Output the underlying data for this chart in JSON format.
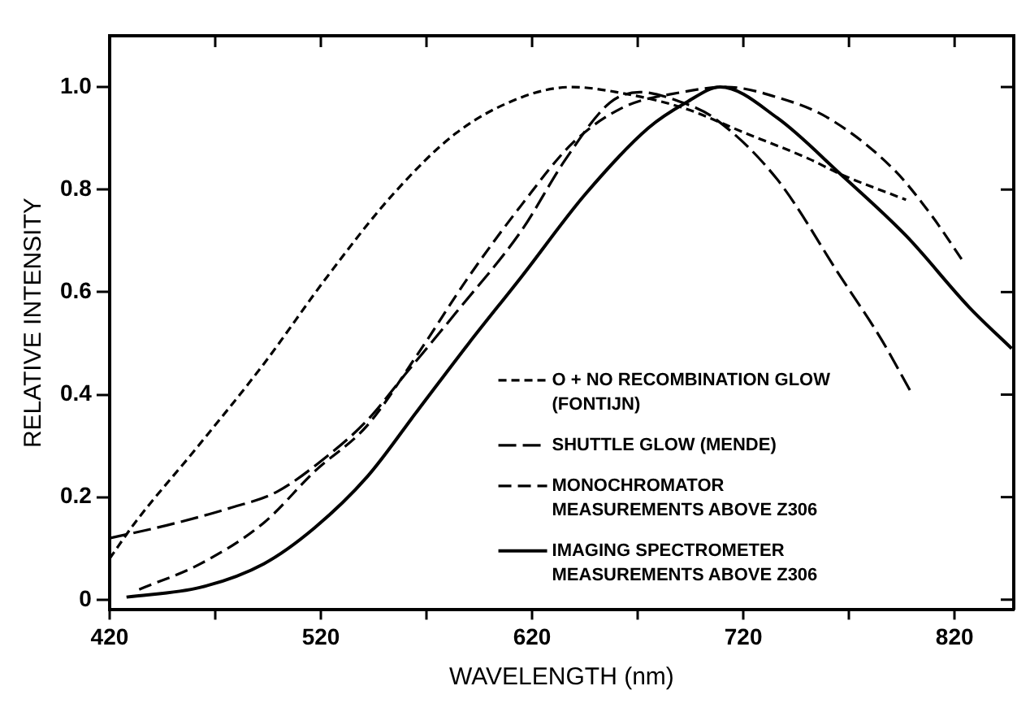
{
  "chart_data": {
    "type": "line",
    "xlabel": "WAVELENGTH (nm)",
    "ylabel": "RELATIVE INTENSITY",
    "xlim": [
      420,
      848
    ],
    "ylim": [
      -0.02,
      1.1
    ],
    "xticks": [
      420,
      {
        "value": 470,
        "label": null
      },
      520,
      {
        "value": 570,
        "label": null
      },
      620,
      {
        "value": 670,
        "label": null
      },
      720,
      {
        "value": 770,
        "label": null
      },
      820
    ],
    "yticks": [
      0,
      0.2,
      0.4,
      0.6,
      0.8,
      {
        "value": 1,
        "label": "1.0"
      }
    ],
    "grid": false,
    "legend": "right",
    "marker": "none",
    "series": [
      {
        "name": "O + NO RECOMBINATION GLOW (FONTIJN)",
        "color": "#000000",
        "line_style": "dashed",
        "x": [
          420,
          432,
          462,
          493,
          523,
          554,
          584,
          615,
          639,
          660,
          691,
          721,
          751,
          766,
          797
        ],
        "values": [
          0.08,
          0.15,
          0.3,
          0.46,
          0.63,
          0.79,
          0.91,
          0.98,
          1.0,
          0.99,
          0.96,
          0.91,
          0.86,
          0.83,
          0.78
        ]
      },
      {
        "name": "SHUTTLE GLOW (MENDE)",
        "color": "#000000",
        "line_style": "dashed",
        "x": [
          420,
          447,
          478,
          499,
          523,
          542,
          560,
          584,
          615,
          636,
          657,
          671,
          691,
          706,
          736,
          766,
          785,
          800
        ],
        "values": [
          0.12,
          0.145,
          0.18,
          0.21,
          0.28,
          0.35,
          0.44,
          0.56,
          0.72,
          0.86,
          0.97,
          0.99,
          0.97,
          0.94,
          0.82,
          0.63,
          0.51,
          0.4
        ]
      },
      {
        "name": "MONOCHROMATOR MEASUREMENTS ABOVE Z306",
        "color": "#000000",
        "line_style": "dashed",
        "x": [
          434,
          463,
          493,
          517,
          542,
          566,
          590,
          615,
          639,
          663,
          691,
          712,
          736,
          760,
          791,
          809,
          824
        ],
        "values": [
          0.02,
          0.07,
          0.15,
          0.25,
          0.34,
          0.48,
          0.63,
          0.77,
          0.89,
          0.96,
          0.99,
          1.0,
          0.98,
          0.94,
          0.84,
          0.75,
          0.66
        ]
      },
      {
        "name": "IMAGING SPECTROMETER MEASUREMENTS ABOVE Z306",
        "color": "#000000",
        "line_style": "solid",
        "x": [
          428,
          463,
          493,
          517,
          542,
          566,
          590,
          615,
          645,
          675,
          693,
          709,
          736,
          766,
          797,
          827,
          847
        ],
        "values": [
          0.005,
          0.024,
          0.07,
          0.14,
          0.24,
          0.37,
          0.5,
          0.63,
          0.79,
          0.92,
          0.97,
          1.0,
          0.94,
          0.83,
          0.71,
          0.57,
          0.49
        ]
      }
    ]
  }
}
